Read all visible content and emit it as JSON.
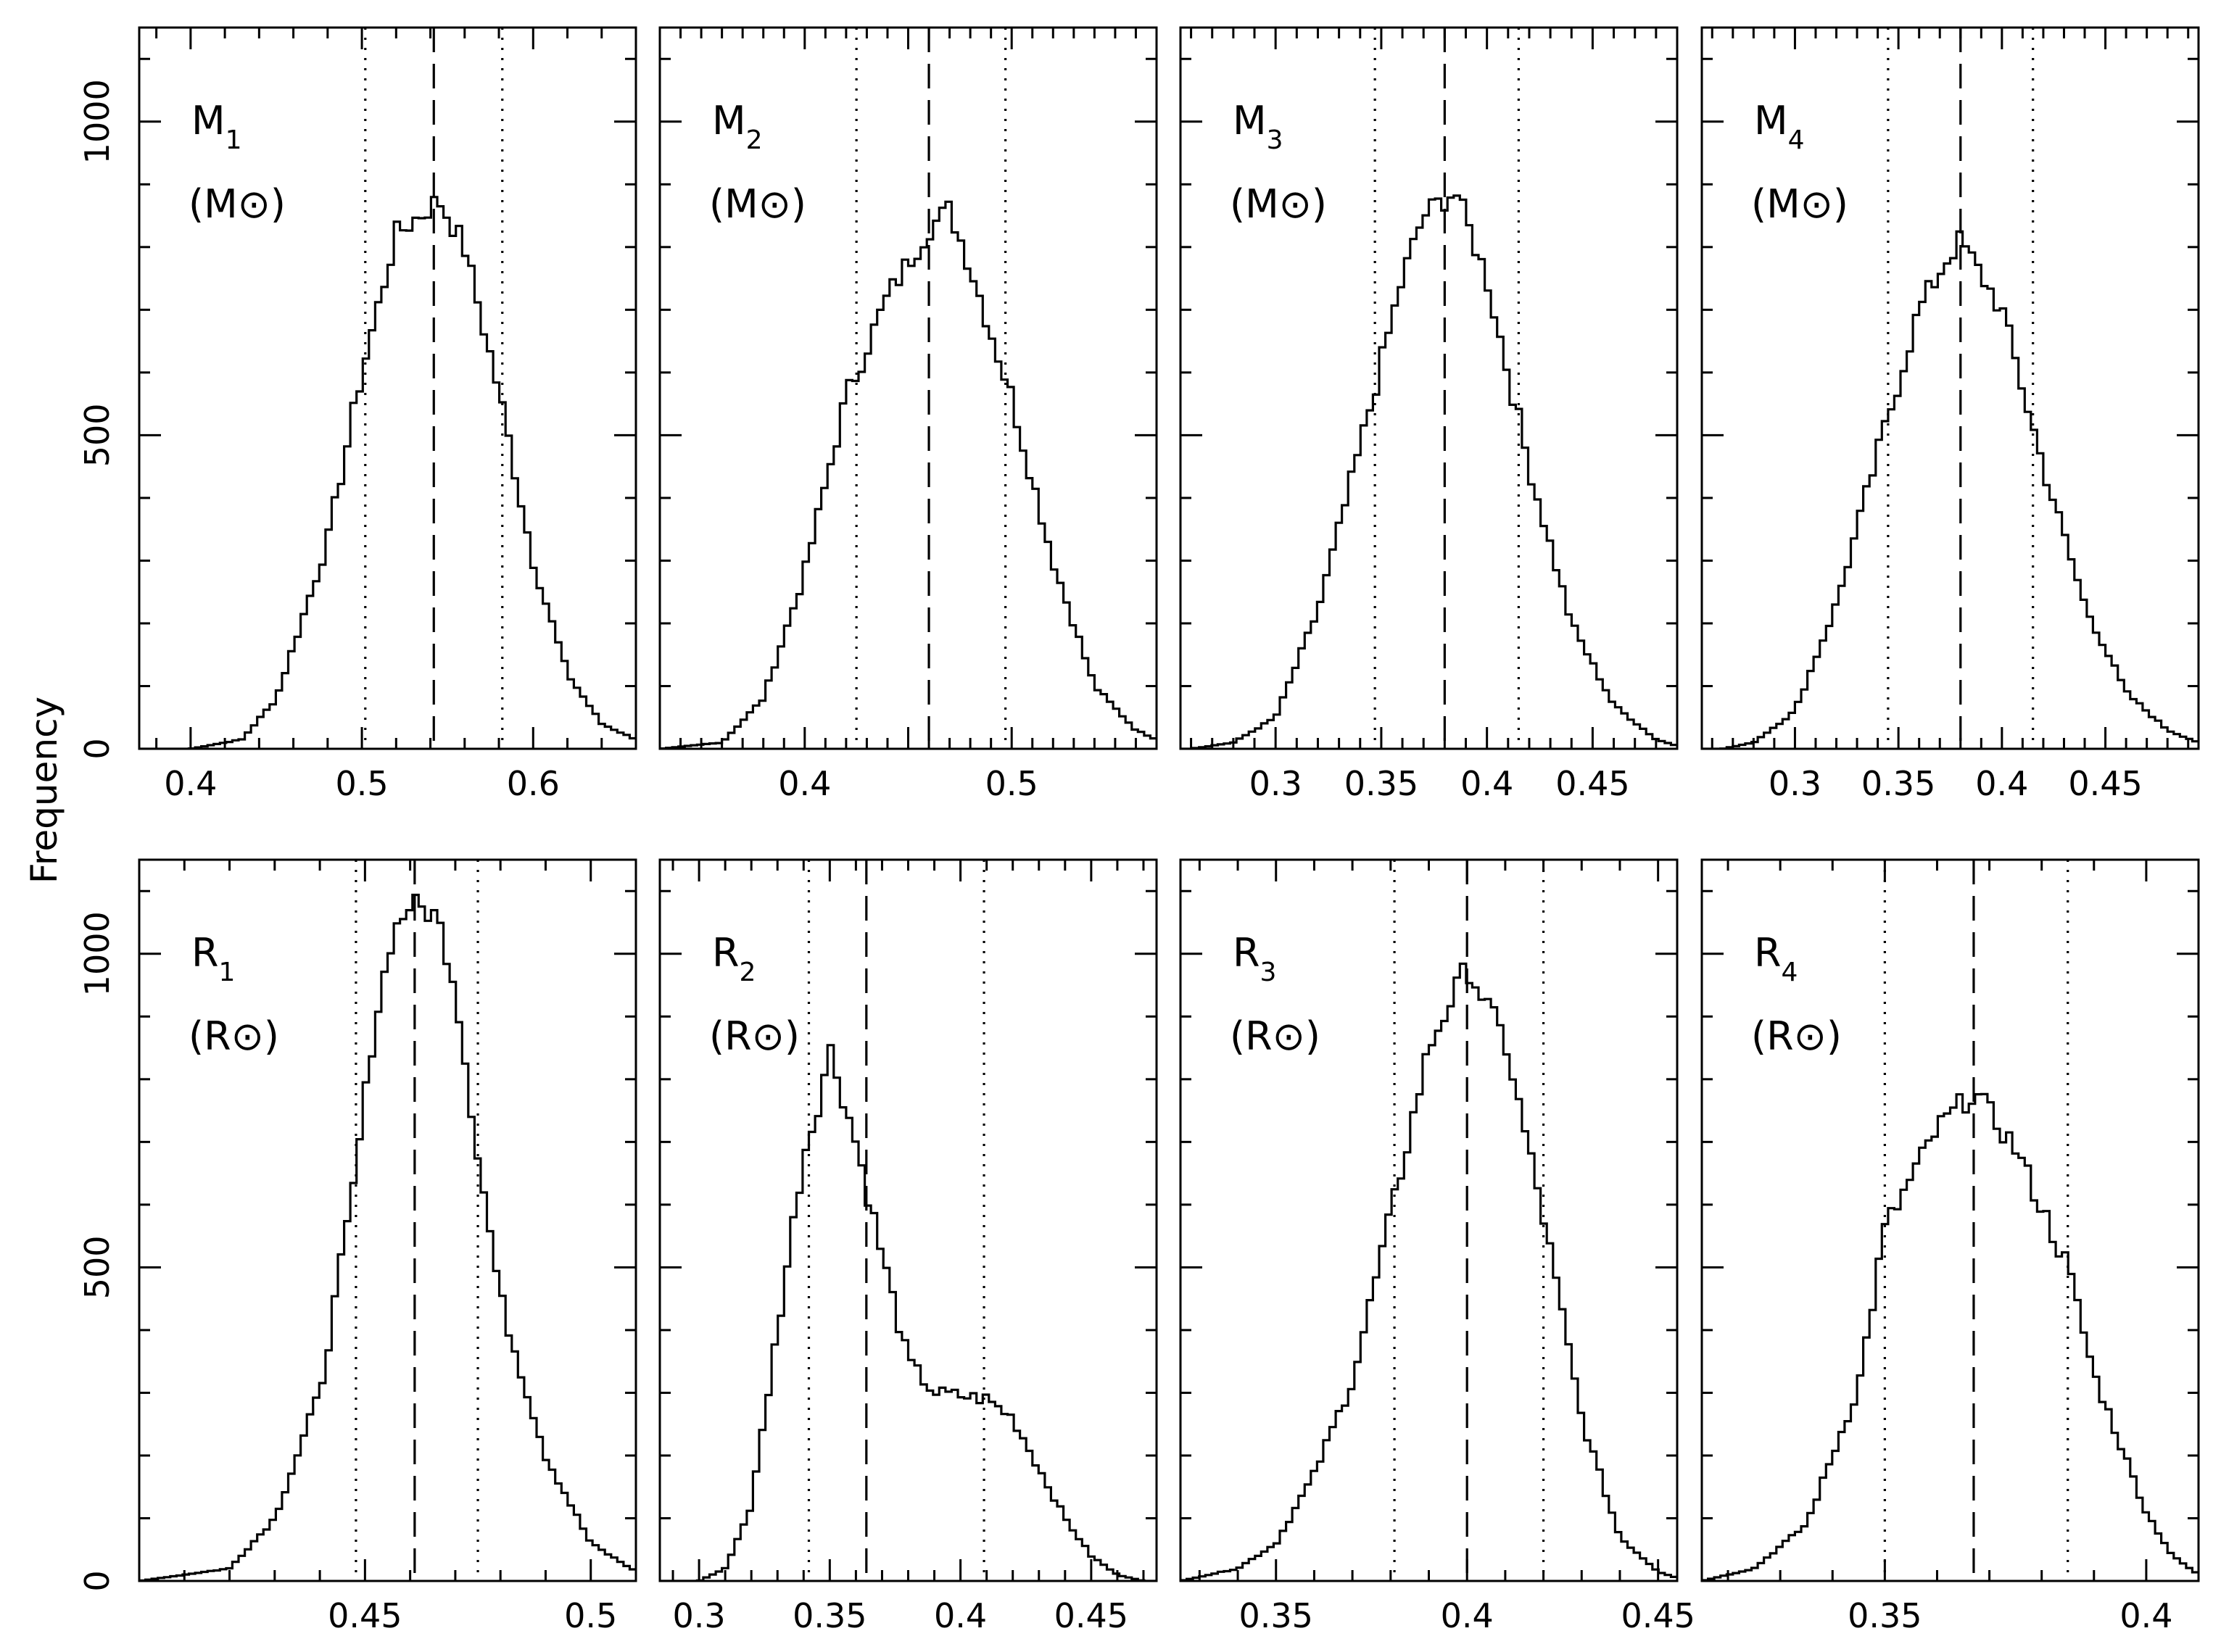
{
  "figure": {
    "ylabel": "Frequency"
  },
  "chart_data": [
    {
      "type": "histogram",
      "id": "M1",
      "symbol": "M",
      "index": "1",
      "unit_letter": "M",
      "unit_text": "(M⊙)",
      "xlim": [
        0.37,
        0.66
      ],
      "ylim": [
        0,
        1150
      ],
      "xticks": [
        0.4,
        0.5,
        0.6
      ],
      "xtick_labels": [
        "0.4",
        "0.5",
        "0.6"
      ],
      "yticks": [
        0,
        500,
        1000
      ],
      "ytick_labels": [
        "0",
        "500",
        "1000"
      ],
      "median": 0.542,
      "lower": 0.502,
      "upper": 0.582,
      "profile": [
        [
          0.4,
          0
        ],
        [
          0.43,
          15
        ],
        [
          0.45,
          80
        ],
        [
          0.48,
          330
        ],
        [
          0.5,
          600
        ],
        [
          0.52,
          820
        ],
        [
          0.545,
          875
        ],
        [
          0.56,
          800
        ],
        [
          0.58,
          570
        ],
        [
          0.6,
          300
        ],
        [
          0.62,
          120
        ],
        [
          0.64,
          40
        ],
        [
          0.66,
          15
        ]
      ]
    },
    {
      "type": "histogram",
      "id": "M2",
      "symbol": "M",
      "index": "2",
      "unit_letter": "M",
      "unit_text": "(M⊙)",
      "xlim": [
        0.33,
        0.57
      ],
      "ylim": [
        0,
        1150
      ],
      "xticks": [
        0.4,
        0.45,
        0.5
      ],
      "xtick_labels": [
        "0.4",
        "",
        "0.5"
      ],
      "yticks": [
        0,
        500,
        1000
      ],
      "ytick_labels": [
        "0",
        "500",
        "1000"
      ],
      "median": 0.46,
      "lower": 0.425,
      "upper": 0.497,
      "profile": [
        [
          0.33,
          0
        ],
        [
          0.36,
          10
        ],
        [
          0.38,
          80
        ],
        [
          0.4,
          280
        ],
        [
          0.42,
          560
        ],
        [
          0.44,
          720
        ],
        [
          0.46,
          830
        ],
        [
          0.47,
          860
        ],
        [
          0.48,
          770
        ],
        [
          0.5,
          560
        ],
        [
          0.52,
          300
        ],
        [
          0.54,
          100
        ],
        [
          0.56,
          30
        ],
        [
          0.57,
          15
        ]
      ]
    },
    {
      "type": "histogram",
      "id": "M3",
      "symbol": "M",
      "index": "3",
      "unit_letter": "M",
      "unit_text": "(M⊙)",
      "xlim": [
        0.255,
        0.49
      ],
      "ylim": [
        0,
        1150
      ],
      "xticks": [
        0.3,
        0.35,
        0.4,
        0.45
      ],
      "xtick_labels": [
        "0.3",
        "0.35",
        "0.4",
        "0.45"
      ],
      "yticks": [
        0,
        500,
        1000
      ],
      "ytick_labels": [
        "0",
        "500",
        "1000"
      ],
      "median": 0.38,
      "lower": 0.347,
      "upper": 0.415,
      "profile": [
        [
          0.26,
          0
        ],
        [
          0.28,
          10
        ],
        [
          0.3,
          50
        ],
        [
          0.32,
          220
        ],
        [
          0.34,
          480
        ],
        [
          0.36,
          750
        ],
        [
          0.37,
          850
        ],
        [
          0.385,
          890
        ],
        [
          0.4,
          750
        ],
        [
          0.42,
          450
        ],
        [
          0.44,
          200
        ],
        [
          0.46,
          70
        ],
        [
          0.48,
          15
        ],
        [
          0.49,
          5
        ]
      ]
    },
    {
      "type": "histogram",
      "id": "M4",
      "symbol": "M",
      "index": "4",
      "unit_letter": "M",
      "unit_text": "(M⊙)",
      "xlim": [
        0.255,
        0.495
      ],
      "ylim": [
        0,
        1150
      ],
      "xticks": [
        0.3,
        0.35,
        0.4,
        0.45
      ],
      "xtick_labels": [
        "0.3",
        "0.35",
        "0.4",
        "0.45"
      ],
      "yticks": [
        0,
        500,
        1000
      ],
      "ytick_labels": [
        "0",
        "500",
        "1000"
      ],
      "median": 0.38,
      "lower": 0.345,
      "upper": 0.415,
      "profile": [
        [
          0.265,
          0
        ],
        [
          0.28,
          10
        ],
        [
          0.3,
          60
        ],
        [
          0.32,
          230
        ],
        [
          0.34,
          470
        ],
        [
          0.36,
          700
        ],
        [
          0.375,
          790
        ],
        [
          0.38,
          810
        ],
        [
          0.4,
          700
        ],
        [
          0.42,
          450
        ],
        [
          0.44,
          230
        ],
        [
          0.46,
          90
        ],
        [
          0.48,
          30
        ],
        [
          0.495,
          10
        ]
      ]
    },
    {
      "type": "histogram",
      "id": "R1",
      "symbol": "R",
      "index": "1",
      "unit_letter": "R",
      "unit_text": "(R⊙)",
      "xlim": [
        0.4,
        0.51
      ],
      "ylim": [
        0,
        1150
      ],
      "xticks": [
        0.45,
        0.5
      ],
      "xtick_labels": [
        "0.45",
        "0.5"
      ],
      "yticks": [
        0,
        500,
        1000
      ],
      "ytick_labels": [
        "0",
        "500",
        "1000"
      ],
      "median": 0.461,
      "lower": 0.448,
      "upper": 0.475,
      "profile": [
        [
          0.4,
          0
        ],
        [
          0.42,
          20
        ],
        [
          0.43,
          100
        ],
        [
          0.44,
          300
        ],
        [
          0.447,
          600
        ],
        [
          0.452,
          880
        ],
        [
          0.456,
          1030
        ],
        [
          0.46,
          1080
        ],
        [
          0.466,
          1060
        ],
        [
          0.47,
          950
        ],
        [
          0.475,
          680
        ],
        [
          0.48,
          450
        ],
        [
          0.49,
          200
        ],
        [
          0.5,
          60
        ],
        [
          0.51,
          15
        ]
      ]
    },
    {
      "type": "histogram",
      "id": "R2",
      "symbol": "R",
      "index": "2",
      "unit_letter": "R",
      "unit_text": "(R⊙)",
      "xlim": [
        0.285,
        0.475
      ],
      "ylim": [
        0,
        1150
      ],
      "xticks": [
        0.3,
        0.35,
        0.4,
        0.45
      ],
      "xtick_labels": [
        "0.3",
        "0.35",
        "0.4",
        "0.45"
      ],
      "yticks": [
        0,
        500,
        1000
      ],
      "ytick_labels": [
        "0",
        "500",
        "1000"
      ],
      "median": 0.364,
      "lower": 0.342,
      "upper": 0.409,
      "profile": [
        [
          0.3,
          0
        ],
        [
          0.31,
          20
        ],
        [
          0.32,
          120
        ],
        [
          0.33,
          400
        ],
        [
          0.34,
          680
        ],
        [
          0.345,
          750
        ],
        [
          0.35,
          850
        ],
        [
          0.36,
          700
        ],
        [
          0.37,
          520
        ],
        [
          0.38,
          350
        ],
        [
          0.39,
          300
        ],
        [
          0.4,
          295
        ],
        [
          0.41,
          290
        ],
        [
          0.42,
          260
        ],
        [
          0.43,
          180
        ],
        [
          0.44,
          100
        ],
        [
          0.45,
          40
        ],
        [
          0.46,
          10
        ],
        [
          0.47,
          0
        ]
      ]
    },
    {
      "type": "histogram",
      "id": "R3",
      "symbol": "R",
      "index": "3",
      "unit_letter": "R",
      "unit_text": "(R⊙)",
      "xlim": [
        0.325,
        0.455
      ],
      "ylim": [
        0,
        1150
      ],
      "xticks": [
        0.35,
        0.4,
        0.45
      ],
      "xtick_labels": [
        "0.35",
        "0.4",
        "0.45"
      ],
      "yticks": [
        0,
        500,
        1000
      ],
      "ytick_labels": [
        "0",
        "500",
        "1000"
      ],
      "median": 0.4,
      "lower": 0.381,
      "upper": 0.42,
      "profile": [
        [
          0.325,
          0
        ],
        [
          0.34,
          20
        ],
        [
          0.35,
          60
        ],
        [
          0.36,
          170
        ],
        [
          0.37,
          320
        ],
        [
          0.38,
          580
        ],
        [
          0.39,
          850
        ],
        [
          0.4,
          980
        ],
        [
          0.41,
          860
        ],
        [
          0.42,
          580
        ],
        [
          0.43,
          260
        ],
        [
          0.44,
          70
        ],
        [
          0.45,
          15
        ],
        [
          0.455,
          5
        ]
      ]
    },
    {
      "type": "histogram",
      "id": "R4",
      "symbol": "R",
      "index": "4",
      "unit_letter": "R",
      "unit_text": "(R⊙)",
      "xlim": [
        0.315,
        0.41
      ],
      "ylim": [
        0,
        1150
      ],
      "xticks": [
        0.35,
        0.4
      ],
      "xtick_labels": [
        "0.35",
        "0.4"
      ],
      "yticks": [
        0,
        500,
        1000
      ],
      "ytick_labels": [
        "0",
        "500",
        "1000"
      ],
      "median": 0.367,
      "lower": 0.35,
      "upper": 0.385,
      "profile": [
        [
          0.315,
          0
        ],
        [
          0.325,
          20
        ],
        [
          0.335,
          90
        ],
        [
          0.345,
          310
        ],
        [
          0.35,
          560
        ],
        [
          0.36,
          720
        ],
        [
          0.367,
          780
        ],
        [
          0.375,
          690
        ],
        [
          0.385,
          500
        ],
        [
          0.39,
          330
        ],
        [
          0.4,
          110
        ],
        [
          0.405,
          40
        ],
        [
          0.41,
          10
        ]
      ]
    }
  ]
}
